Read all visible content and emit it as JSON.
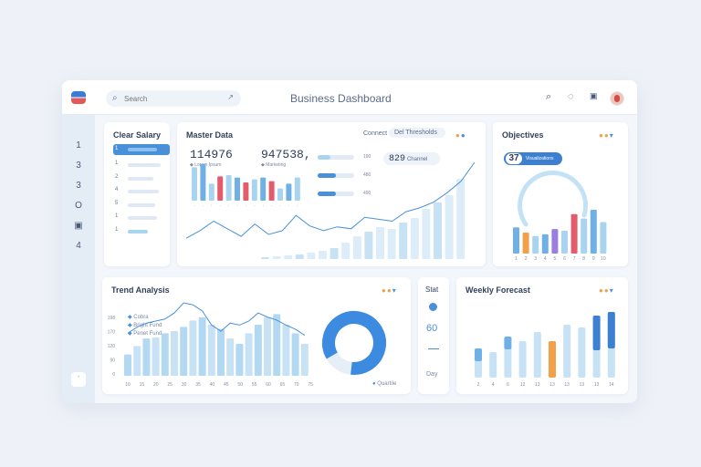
{
  "header": {
    "search_placeholder": "Search",
    "title": "Business Dashboard",
    "tools": [
      "search-icon",
      "notifications-icon",
      "calendar-icon",
      "avatar"
    ]
  },
  "sidebar": {
    "items": [
      "1",
      "3",
      "3",
      "O",
      "▣",
      "4"
    ],
    "badge": "ʽ"
  },
  "sales_card": {
    "title": "Clear Salary",
    "items": [
      "1",
      "1",
      "2",
      "4",
      "5",
      "1",
      "1"
    ],
    "fills": [
      0.8,
      0.9,
      0.7,
      0.85,
      0.75,
      0.8,
      0.55
    ]
  },
  "market_card": {
    "title": "Master Data",
    "stat1": "114976",
    "stat1_label": "◆ Lorem Ipsum",
    "stat2": "947538",
    "stat2_suffix": ",",
    "stat2_label": "◆ Marketing",
    "tab1": "Connect",
    "tab2": "Del Thresholds",
    "pill_value": "829",
    "pill_label": "Channel",
    "progress": [
      {
        "label": "190",
        "fill": 0.35
      },
      {
        "label": "480",
        "fill": 0.5
      },
      {
        "label": "490",
        "fill": 0.5
      }
    ],
    "accent_colors": {
      "light": "#a9d4f0",
      "mid": "#6fb1e6",
      "red": "#e45b6b",
      "dark": "#3d7fd0"
    },
    "bars": [
      {
        "value": 55,
        "color": "light"
      },
      {
        "value": 60,
        "color": "mid"
      },
      {
        "value": 28,
        "color": "light"
      },
      {
        "value": 40,
        "color": "red"
      },
      {
        "value": 42,
        "color": "light"
      },
      {
        "value": 38,
        "color": "mid"
      },
      {
        "value": 30,
        "color": "red"
      },
      {
        "value": 35,
        "color": "light"
      },
      {
        "value": 38,
        "color": "mid"
      },
      {
        "value": 32,
        "color": "red"
      },
      {
        "value": 20,
        "color": "light"
      },
      {
        "value": 28,
        "color": "mid"
      },
      {
        "value": 38,
        "color": "light"
      }
    ],
    "area_bars": [
      2,
      3,
      4,
      5,
      7,
      9,
      12,
      18,
      25,
      30,
      35,
      33,
      40,
      45,
      55,
      62,
      70,
      88
    ],
    "line": [
      20,
      28,
      38,
      30,
      22,
      35,
      24,
      28,
      44,
      33,
      28,
      32,
      30,
      42,
      40,
      38,
      48,
      52,
      58,
      68,
      80,
      100
    ]
  },
  "objectives_card": {
    "title": "Objectives",
    "badge_value": "37",
    "badge_text": "Visualizations",
    "bars": [
      30,
      24,
      20,
      22,
      28,
      26,
      45,
      40,
      50,
      36
    ],
    "colors": [
      "#6fb1e6",
      "#f2a14a",
      "#a9d4f0",
      "#6fb1e6",
      "#9b7fe0",
      "#a9d4f0",
      "#e45b6b",
      "#a9d4f0",
      "#6fb1e6",
      "#a9d4f0"
    ],
    "xlabels": [
      "1",
      "2",
      "3",
      "4",
      "5",
      "6",
      "7",
      "8",
      "9",
      "10"
    ]
  },
  "trend_card": {
    "title": "Trend Analysis",
    "ylabels": [
      "198",
      "170",
      "120",
      "90",
      "0"
    ],
    "legend": [
      "Cobra",
      "Bright Fund",
      "Penet Fund"
    ],
    "bars": [
      20,
      28,
      35,
      36,
      40,
      42,
      46,
      52,
      55,
      48,
      44,
      35,
      30,
      40,
      48,
      55,
      58,
      48,
      40,
      30
    ],
    "line": [
      42,
      48,
      52,
      54,
      56,
      62,
      72,
      70,
      64,
      50,
      44,
      52,
      50,
      54,
      62,
      58,
      55,
      50,
      46,
      40
    ],
    "xlabels": [
      "10",
      "15",
      "20",
      "25",
      "30",
      "35",
      "40",
      "45",
      "50",
      "55",
      "60",
      "65",
      "70",
      "75"
    ],
    "donut_fill": 0.85,
    "donut_legend": "Quartile"
  },
  "stat_card": {
    "title": "Stat",
    "value": "60",
    "foot": "Day"
  },
  "weekly_card": {
    "title": "Weekly Forecast",
    "bars": [
      {
        "total": 32,
        "top": 14,
        "color": "#6fb1e6"
      },
      {
        "total": 28,
        "top": 0,
        "color": "#a9d4f0"
      },
      {
        "total": 45,
        "top": 14,
        "color": "#6fb1e6"
      },
      {
        "total": 40,
        "top": 0,
        "color": "#a9d4f0"
      },
      {
        "total": 50,
        "top": 0,
        "color": "#a9d4f0"
      },
      {
        "total": 40,
        "top": 40,
        "color": "#f2a14a"
      },
      {
        "total": 58,
        "top": 0,
        "color": "#a9d4f0"
      },
      {
        "total": 55,
        "top": 0,
        "color": "#a9d4f0"
      },
      {
        "total": 68,
        "top": 38,
        "color": "#3d7fd0"
      },
      {
        "total": 72,
        "top": 40,
        "color": "#3d7fd0"
      }
    ],
    "xlabels": [
      "2",
      "4",
      "6",
      "12",
      "13",
      "13",
      "13",
      "13",
      "13",
      "14"
    ]
  }
}
